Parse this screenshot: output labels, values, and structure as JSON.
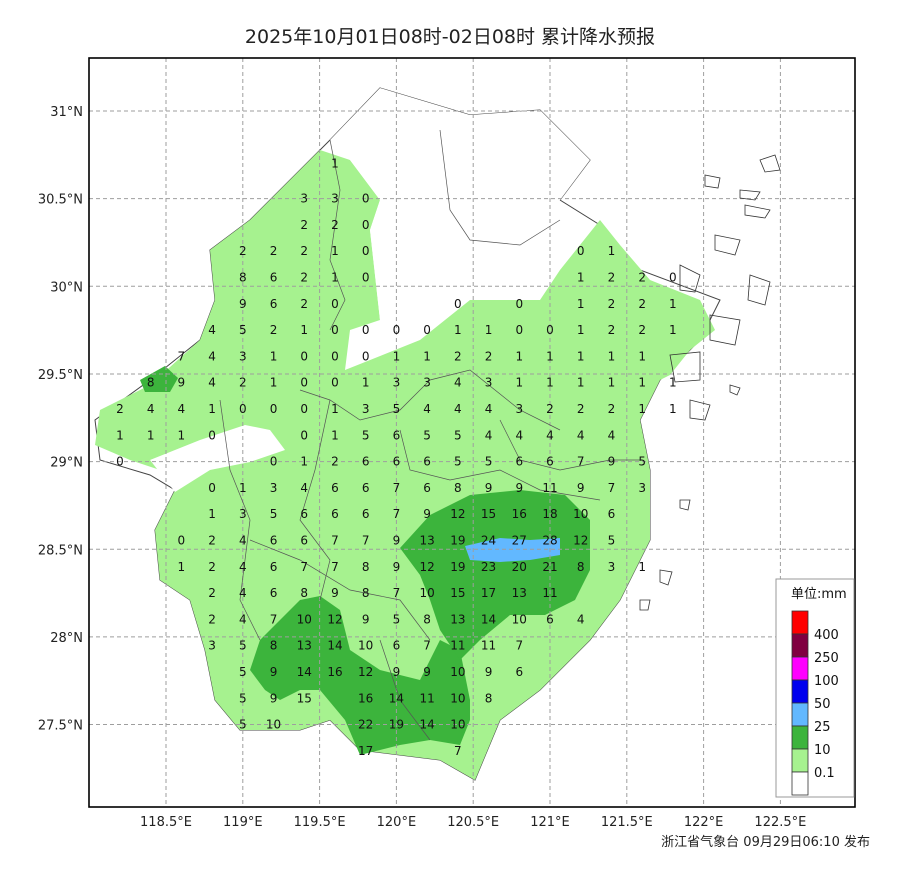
{
  "title": "2025年10月01日08时-02日08时 累计降水预报",
  "footer": "浙江省气象台 09月29日06:10 发布",
  "map": {
    "lon_ticks": [
      "118.5°E",
      "119°E",
      "119.5°E",
      "120°E",
      "120.5°E",
      "121°E",
      "121.5°E",
      "122°E",
      "122.5°E"
    ],
    "lat_ticks": [
      "31°N",
      "30.5°N",
      "30°N",
      "29.5°N",
      "29°N",
      "28.5°N",
      "28°N",
      "27.5°N"
    ],
    "grid": true
  },
  "legend": {
    "title": "单位:mm",
    "items": [
      {
        "label": "400",
        "color": "#ff0000"
      },
      {
        "label": "250",
        "color": "#800040"
      },
      {
        "label": "100",
        "color": "#ff00ff"
      },
      {
        "label": "50",
        "color": "#0000ee"
      },
      {
        "label": "25",
        "color": "#62b8ff"
      },
      {
        "label": "10",
        "color": "#3cb43c"
      },
      {
        "label": "0.1",
        "color": "#a6f28f"
      },
      {
        "label": "",
        "color": "#ffffff"
      }
    ]
  },
  "grid_values": [
    {
      "lon": 119.6,
      "lat": 30.7,
      "v": "1"
    },
    {
      "lon": 119.4,
      "lat": 30.5,
      "v": "3"
    },
    {
      "lon": 119.6,
      "lat": 30.5,
      "v": "3"
    },
    {
      "lon": 119.8,
      "lat": 30.5,
      "v": "0"
    },
    {
      "lon": 119.4,
      "lat": 30.35,
      "v": "2"
    },
    {
      "lon": 119.6,
      "lat": 30.35,
      "v": "2"
    },
    {
      "lon": 119.8,
      "lat": 30.35,
      "v": "0"
    },
    {
      "lon": 119.0,
      "lat": 30.2,
      "v": "2"
    },
    {
      "lon": 119.2,
      "lat": 30.2,
      "v": "2"
    },
    {
      "lon": 119.4,
      "lat": 30.2,
      "v": "2"
    },
    {
      "lon": 119.6,
      "lat": 30.2,
      "v": "1"
    },
    {
      "lon": 119.8,
      "lat": 30.2,
      "v": "0"
    },
    {
      "lon": 119.0,
      "lat": 30.05,
      "v": "8"
    },
    {
      "lon": 119.2,
      "lat": 30.05,
      "v": "6"
    },
    {
      "lon": 119.4,
      "lat": 30.05,
      "v": "2"
    },
    {
      "lon": 119.6,
      "lat": 30.05,
      "v": "1"
    },
    {
      "lon": 119.8,
      "lat": 30.05,
      "v": "0"
    },
    {
      "lon": 119.0,
      "lat": 29.9,
      "v": "9"
    },
    {
      "lon": 119.2,
      "lat": 29.9,
      "v": "6"
    },
    {
      "lon": 119.4,
      "lat": 29.9,
      "v": "2"
    },
    {
      "lon": 119.6,
      "lat": 29.9,
      "v": "0"
    },
    {
      "lon": 120.4,
      "lat": 29.9,
      "v": "0"
    },
    {
      "lon": 120.8,
      "lat": 29.9,
      "v": "0"
    },
    {
      "lon": 118.8,
      "lat": 29.75,
      "v": "4"
    },
    {
      "lon": 119.0,
      "lat": 29.75,
      "v": "5"
    },
    {
      "lon": 119.2,
      "lat": 29.75,
      "v": "2"
    },
    {
      "lon": 119.4,
      "lat": 29.75,
      "v": "1"
    },
    {
      "lon": 119.6,
      "lat": 29.75,
      "v": "0"
    },
    {
      "lon": 119.8,
      "lat": 29.75,
      "v": "0"
    },
    {
      "lon": 120.0,
      "lat": 29.75,
      "v": "0"
    },
    {
      "lon": 120.2,
      "lat": 29.75,
      "v": "0"
    },
    {
      "lon": 120.4,
      "lat": 29.75,
      "v": "1"
    },
    {
      "lon": 120.6,
      "lat": 29.75,
      "v": "1"
    },
    {
      "lon": 120.8,
      "lat": 29.75,
      "v": "0"
    },
    {
      "lon": 121.0,
      "lat": 29.75,
      "v": "0"
    },
    {
      "lon": 118.6,
      "lat": 29.6,
      "v": "7"
    },
    {
      "lon": 118.8,
      "lat": 29.6,
      "v": "4"
    },
    {
      "lon": 119.0,
      "lat": 29.6,
      "v": "3"
    },
    {
      "lon": 119.2,
      "lat": 29.6,
      "v": "1"
    },
    {
      "lon": 119.4,
      "lat": 29.6,
      "v": "0"
    },
    {
      "lon": 119.6,
      "lat": 29.6,
      "v": "0"
    },
    {
      "lon": 119.8,
      "lat": 29.6,
      "v": "0"
    },
    {
      "lon": 120.0,
      "lat": 29.6,
      "v": "1"
    },
    {
      "lon": 120.2,
      "lat": 29.6,
      "v": "1"
    },
    {
      "lon": 120.4,
      "lat": 29.6,
      "v": "2"
    },
    {
      "lon": 120.6,
      "lat": 29.6,
      "v": "2"
    },
    {
      "lon": 120.8,
      "lat": 29.6,
      "v": "1"
    },
    {
      "lon": 121.0,
      "lat": 29.6,
      "v": "1"
    },
    {
      "lon": 118.4,
      "lat": 29.45,
      "v": "8"
    },
    {
      "lon": 118.6,
      "lat": 29.45,
      "v": "9"
    },
    {
      "lon": 118.8,
      "lat": 29.45,
      "v": "4"
    },
    {
      "lon": 119.0,
      "lat": 29.45,
      "v": "2"
    },
    {
      "lon": 119.2,
      "lat": 29.45,
      "v": "1"
    },
    {
      "lon": 119.4,
      "lat": 29.45,
      "v": "0"
    },
    {
      "lon": 119.6,
      "lat": 29.45,
      "v": "0"
    },
    {
      "lon": 119.8,
      "lat": 29.45,
      "v": "1"
    },
    {
      "lon": 120.0,
      "lat": 29.45,
      "v": "3"
    },
    {
      "lon": 120.2,
      "lat": 29.45,
      "v": "3"
    },
    {
      "lon": 120.4,
      "lat": 29.45,
      "v": "4"
    },
    {
      "lon": 120.6,
      "lat": 29.45,
      "v": "3"
    },
    {
      "lon": 120.8,
      "lat": 29.45,
      "v": "1"
    },
    {
      "lon": 121.0,
      "lat": 29.45,
      "v": "1"
    },
    {
      "lon": 118.2,
      "lat": 29.3,
      "v": "2"
    },
    {
      "lon": 118.4,
      "lat": 29.3,
      "v": "4"
    },
    {
      "lon": 118.6,
      "lat": 29.3,
      "v": "4"
    },
    {
      "lon": 118.8,
      "lat": 29.3,
      "v": "1"
    },
    {
      "lon": 119.0,
      "lat": 29.3,
      "v": "0"
    },
    {
      "lon": 119.2,
      "lat": 29.3,
      "v": "0"
    },
    {
      "lon": 119.4,
      "lat": 29.3,
      "v": "0"
    },
    {
      "lon": 119.6,
      "lat": 29.3,
      "v": "1"
    },
    {
      "lon": 119.8,
      "lat": 29.3,
      "v": "3"
    },
    {
      "lon": 120.0,
      "lat": 29.3,
      "v": "5"
    },
    {
      "lon": 120.2,
      "lat": 29.3,
      "v": "4"
    },
    {
      "lon": 120.4,
      "lat": 29.3,
      "v": "4"
    },
    {
      "lon": 120.6,
      "lat": 29.3,
      "v": "4"
    },
    {
      "lon": 120.8,
      "lat": 29.3,
      "v": "3"
    },
    {
      "lon": 121.0,
      "lat": 29.3,
      "v": "2"
    },
    {
      "lon": 118.2,
      "lat": 29.15,
      "v": "1"
    },
    {
      "lon": 118.4,
      "lat": 29.15,
      "v": "1"
    },
    {
      "lon": 118.6,
      "lat": 29.15,
      "v": "1"
    },
    {
      "lon": 118.8,
      "lat": 29.15,
      "v": "0"
    },
    {
      "lon": 119.4,
      "lat": 29.15,
      "v": "0"
    },
    {
      "lon": 119.6,
      "lat": 29.15,
      "v": "1"
    },
    {
      "lon": 119.8,
      "lat": 29.15,
      "v": "5"
    },
    {
      "lon": 120.0,
      "lat": 29.15,
      "v": "6"
    },
    {
      "lon": 120.2,
      "lat": 29.15,
      "v": "5"
    },
    {
      "lon": 120.4,
      "lat": 29.15,
      "v": "5"
    },
    {
      "lon": 120.6,
      "lat": 29.15,
      "v": "4"
    },
    {
      "lon": 120.8,
      "lat": 29.15,
      "v": "4"
    },
    {
      "lon": 121.0,
      "lat": 29.15,
      "v": "4"
    },
    {
      "lon": 118.2,
      "lat": 29.0,
      "v": "0"
    },
    {
      "lon": 119.2,
      "lat": 29.0,
      "v": "0"
    },
    {
      "lon": 119.4,
      "lat": 29.0,
      "v": "1"
    },
    {
      "lon": 119.6,
      "lat": 29.0,
      "v": "2"
    },
    {
      "lon": 119.8,
      "lat": 29.0,
      "v": "6"
    },
    {
      "lon": 120.0,
      "lat": 29.0,
      "v": "6"
    },
    {
      "lon": 120.2,
      "lat": 29.0,
      "v": "6"
    },
    {
      "lon": 120.4,
      "lat": 29.0,
      "v": "5"
    },
    {
      "lon": 120.6,
      "lat": 29.0,
      "v": "5"
    },
    {
      "lon": 120.8,
      "lat": 29.0,
      "v": "6"
    },
    {
      "lon": 121.0,
      "lat": 29.0,
      "v": "6"
    },
    {
      "lon": 118.8,
      "lat": 28.85,
      "v": "0"
    },
    {
      "lon": 119.0,
      "lat": 28.85,
      "v": "1"
    },
    {
      "lon": 119.2,
      "lat": 28.85,
      "v": "3"
    },
    {
      "lon": 119.4,
      "lat": 28.85,
      "v": "4"
    },
    {
      "lon": 119.6,
      "lat": 28.85,
      "v": "6"
    },
    {
      "lon": 119.8,
      "lat": 28.85,
      "v": "6"
    },
    {
      "lon": 120.0,
      "lat": 28.85,
      "v": "7"
    },
    {
      "lon": 120.2,
      "lat": 28.85,
      "v": "6"
    },
    {
      "lon": 120.4,
      "lat": 28.85,
      "v": "8"
    },
    {
      "lon": 120.6,
      "lat": 28.85,
      "v": "9"
    },
    {
      "lon": 120.8,
      "lat": 28.85,
      "v": "9"
    },
    {
      "lon": 121.0,
      "lat": 28.85,
      "v": "11"
    },
    {
      "lon": 118.8,
      "lat": 28.7,
      "v": "1"
    },
    {
      "lon": 119.0,
      "lat": 28.7,
      "v": "3"
    },
    {
      "lon": 119.2,
      "lat": 28.7,
      "v": "5"
    },
    {
      "lon": 119.4,
      "lat": 28.7,
      "v": "6"
    },
    {
      "lon": 119.6,
      "lat": 28.7,
      "v": "6"
    },
    {
      "lon": 119.8,
      "lat": 28.7,
      "v": "6"
    },
    {
      "lon": 120.0,
      "lat": 28.7,
      "v": "7"
    },
    {
      "lon": 120.2,
      "lat": 28.7,
      "v": "9"
    },
    {
      "lon": 120.4,
      "lat": 28.7,
      "v": "12"
    },
    {
      "lon": 120.6,
      "lat": 28.7,
      "v": "15"
    },
    {
      "lon": 120.8,
      "lat": 28.7,
      "v": "16"
    },
    {
      "lon": 121.0,
      "lat": 28.7,
      "v": "18"
    },
    {
      "lon": 118.6,
      "lat": 28.55,
      "v": "0"
    },
    {
      "lon": 118.8,
      "lat": 28.55,
      "v": "2"
    },
    {
      "lon": 119.0,
      "lat": 28.55,
      "v": "4"
    },
    {
      "lon": 119.2,
      "lat": 28.55,
      "v": "6"
    },
    {
      "lon": 119.4,
      "lat": 28.55,
      "v": "6"
    },
    {
      "lon": 119.6,
      "lat": 28.55,
      "v": "7"
    },
    {
      "lon": 119.8,
      "lat": 28.55,
      "v": "7"
    },
    {
      "lon": 120.0,
      "lat": 28.55,
      "v": "9"
    },
    {
      "lon": 120.2,
      "lat": 28.55,
      "v": "13"
    },
    {
      "lon": 120.4,
      "lat": 28.55,
      "v": "19"
    },
    {
      "lon": 120.6,
      "lat": 28.55,
      "v": "24"
    },
    {
      "lon": 120.8,
      "lat": 28.55,
      "v": "27"
    },
    {
      "lon": 121.0,
      "lat": 28.55,
      "v": "28"
    },
    {
      "lon": 118.6,
      "lat": 28.4,
      "v": "1"
    },
    {
      "lon": 118.8,
      "lat": 28.4,
      "v": "2"
    },
    {
      "lon": 119.0,
      "lat": 28.4,
      "v": "4"
    },
    {
      "lon": 119.2,
      "lat": 28.4,
      "v": "6"
    },
    {
      "lon": 119.4,
      "lat": 28.4,
      "v": "7"
    },
    {
      "lon": 119.6,
      "lat": 28.4,
      "v": "7"
    },
    {
      "lon": 119.8,
      "lat": 28.4,
      "v": "8"
    },
    {
      "lon": 120.0,
      "lat": 28.4,
      "v": "9"
    },
    {
      "lon": 120.2,
      "lat": 28.4,
      "v": "12"
    },
    {
      "lon": 120.4,
      "lat": 28.4,
      "v": "19"
    },
    {
      "lon": 120.6,
      "lat": 28.4,
      "v": "23"
    },
    {
      "lon": 120.8,
      "lat": 28.4,
      "v": "20"
    },
    {
      "lon": 121.0,
      "lat": 28.4,
      "v": "21"
    },
    {
      "lon": 118.8,
      "lat": 28.25,
      "v": "2"
    },
    {
      "lon": 119.0,
      "lat": 28.25,
      "v": "4"
    },
    {
      "lon": 119.2,
      "lat": 28.25,
      "v": "6"
    },
    {
      "lon": 119.4,
      "lat": 28.25,
      "v": "8"
    },
    {
      "lon": 119.6,
      "lat": 28.25,
      "v": "9"
    },
    {
      "lon": 119.8,
      "lat": 28.25,
      "v": "8"
    },
    {
      "lon": 120.0,
      "lat": 28.25,
      "v": "7"
    },
    {
      "lon": 120.2,
      "lat": 28.25,
      "v": "10"
    },
    {
      "lon": 120.4,
      "lat": 28.25,
      "v": "15"
    },
    {
      "lon": 120.6,
      "lat": 28.25,
      "v": "17"
    },
    {
      "lon": 120.8,
      "lat": 28.25,
      "v": "13"
    },
    {
      "lon": 121.0,
      "lat": 28.25,
      "v": "11"
    },
    {
      "lon": 118.8,
      "lat": 28.1,
      "v": "2"
    },
    {
      "lon": 119.0,
      "lat": 28.1,
      "v": "4"
    },
    {
      "lon": 119.2,
      "lat": 28.1,
      "v": "7"
    },
    {
      "lon": 119.4,
      "lat": 28.1,
      "v": "10"
    },
    {
      "lon": 119.6,
      "lat": 28.1,
      "v": "12"
    },
    {
      "lon": 119.8,
      "lat": 28.1,
      "v": "9"
    },
    {
      "lon": 120.0,
      "lat": 28.1,
      "v": "5"
    },
    {
      "lon": 120.2,
      "lat": 28.1,
      "v": "8"
    },
    {
      "lon": 120.4,
      "lat": 28.1,
      "v": "13"
    },
    {
      "lon": 120.6,
      "lat": 28.1,
      "v": "14"
    },
    {
      "lon": 120.8,
      "lat": 28.1,
      "v": "10"
    },
    {
      "lon": 121.0,
      "lat": 28.1,
      "v": "6"
    },
    {
      "lon": 118.8,
      "lat": 27.95,
      "v": "3"
    },
    {
      "lon": 119.0,
      "lat": 27.95,
      "v": "5"
    },
    {
      "lon": 119.2,
      "lat": 27.95,
      "v": "8"
    },
    {
      "lon": 119.4,
      "lat": 27.95,
      "v": "13"
    },
    {
      "lon": 119.6,
      "lat": 27.95,
      "v": "14"
    },
    {
      "lon": 119.8,
      "lat": 27.95,
      "v": "10"
    },
    {
      "lon": 120.0,
      "lat": 27.95,
      "v": "6"
    },
    {
      "lon": 120.2,
      "lat": 27.95,
      "v": "7"
    },
    {
      "lon": 120.4,
      "lat": 27.95,
      "v": "11"
    },
    {
      "lon": 120.6,
      "lat": 27.95,
      "v": "11"
    },
    {
      "lon": 120.8,
      "lat": 27.95,
      "v": "7"
    },
    {
      "lon": 119.0,
      "lat": 27.8,
      "v": "5"
    },
    {
      "lon": 119.2,
      "lat": 27.8,
      "v": "9"
    },
    {
      "lon": 119.4,
      "lat": 27.8,
      "v": "14"
    },
    {
      "lon": 119.6,
      "lat": 27.8,
      "v": "16"
    },
    {
      "lon": 119.8,
      "lat": 27.8,
      "v": "12"
    },
    {
      "lon": 120.0,
      "lat": 27.8,
      "v": "9"
    },
    {
      "lon": 120.2,
      "lat": 27.8,
      "v": "9"
    },
    {
      "lon": 120.4,
      "lat": 27.8,
      "v": "10"
    },
    {
      "lon": 120.6,
      "lat": 27.8,
      "v": "9"
    },
    {
      "lon": 120.8,
      "lat": 27.8,
      "v": "6"
    },
    {
      "lon": 119.0,
      "lat": 27.65,
      "v": "5"
    },
    {
      "lon": 119.2,
      "lat": 27.65,
      "v": "9"
    },
    {
      "lon": 119.4,
      "lat": 27.65,
      "v": "15"
    },
    {
      "lon": 119.8,
      "lat": 27.65,
      "v": "16"
    },
    {
      "lon": 120.0,
      "lat": 27.65,
      "v": "14"
    },
    {
      "lon": 120.2,
      "lat": 27.65,
      "v": "11"
    },
    {
      "lon": 120.4,
      "lat": 27.65,
      "v": "10"
    },
    {
      "lon": 120.6,
      "lat": 27.65,
      "v": "8"
    },
    {
      "lon": 119.0,
      "lat": 27.5,
      "v": "5"
    },
    {
      "lon": 119.2,
      "lat": 27.5,
      "v": "10"
    },
    {
      "lon": 119.8,
      "lat": 27.5,
      "v": "22"
    },
    {
      "lon": 120.0,
      "lat": 27.5,
      "v": "19"
    },
    {
      "lon": 120.2,
      "lat": 27.5,
      "v": "14"
    },
    {
      "lon": 120.4,
      "lat": 27.5,
      "v": "10"
    },
    {
      "lon": 119.8,
      "lat": 27.35,
      "v": "17"
    },
    {
      "lon": 120.4,
      "lat": 27.35,
      "v": "7"
    },
    {
      "lon": 121.2,
      "lat": 29.15,
      "v": "4"
    },
    {
      "lon": 121.4,
      "lat": 29.15,
      "v": "4"
    },
    {
      "lon": 121.2,
      "lat": 29.0,
      "v": "7"
    },
    {
      "lon": 121.4,
      "lat": 29.0,
      "v": "9"
    },
    {
      "lon": 121.6,
      "lat": 29.0,
      "v": "5"
    },
    {
      "lon": 121.2,
      "lat": 28.85,
      "v": "9"
    },
    {
      "lon": 121.4,
      "lat": 28.85,
      "v": "7"
    },
    {
      "lon": 121.6,
      "lat": 28.85,
      "v": "3"
    },
    {
      "lon": 121.2,
      "lat": 28.7,
      "v": "10"
    },
    {
      "lon": 121.4,
      "lat": 28.7,
      "v": "6"
    },
    {
      "lon": 121.2,
      "lat": 28.55,
      "v": "12"
    },
    {
      "lon": 121.4,
      "lat": 28.55,
      "v": "5"
    },
    {
      "lon": 121.2,
      "lat": 28.4,
      "v": "8"
    },
    {
      "lon": 121.4,
      "lat": 28.4,
      "v": "3"
    },
    {
      "lon": 121.6,
      "lat": 28.4,
      "v": "1"
    },
    {
      "lon": 121.2,
      "lat": 28.1,
      "v": "4"
    },
    {
      "lon": 121.2,
      "lat": 30.2,
      "v": "0"
    },
    {
      "lon": 121.4,
      "lat": 30.2,
      "v": "1"
    },
    {
      "lon": 121.2,
      "lat": 30.05,
      "v": "1"
    },
    {
      "lon": 121.4,
      "lat": 30.05,
      "v": "2"
    },
    {
      "lon": 121.6,
      "lat": 30.05,
      "v": "2"
    },
    {
      "lon": 121.8,
      "lat": 30.05,
      "v": "0"
    },
    {
      "lon": 121.2,
      "lat": 29.9,
      "v": "1"
    },
    {
      "lon": 121.4,
      "lat": 29.9,
      "v": "2"
    },
    {
      "lon": 121.6,
      "lat": 29.9,
      "v": "2"
    },
    {
      "lon": 121.8,
      "lat": 29.9,
      "v": "1"
    },
    {
      "lon": 121.2,
      "lat": 29.75,
      "v": "1"
    },
    {
      "lon": 121.4,
      "lat": 29.75,
      "v": "2"
    },
    {
      "lon": 121.6,
      "lat": 29.75,
      "v": "2"
    },
    {
      "lon": 121.8,
      "lat": 29.75,
      "v": "1"
    },
    {
      "lon": 121.2,
      "lat": 29.6,
      "v": "1"
    },
    {
      "lon": 121.4,
      "lat": 29.6,
      "v": "1"
    },
    {
      "lon": 121.6,
      "lat": 29.6,
      "v": "1"
    },
    {
      "lon": 121.2,
      "lat": 29.45,
      "v": "1"
    },
    {
      "lon": 121.4,
      "lat": 29.45,
      "v": "1"
    },
    {
      "lon": 121.6,
      "lat": 29.45,
      "v": "1"
    },
    {
      "lon": 121.8,
      "lat": 29.45,
      "v": "1"
    },
    {
      "lon": 121.2,
      "lat": 29.3,
      "v": "2"
    },
    {
      "lon": 121.4,
      "lat": 29.3,
      "v": "2"
    },
    {
      "lon": 121.6,
      "lat": 29.3,
      "v": "1"
    },
    {
      "lon": 121.8,
      "lat": 29.3,
      "v": "1"
    }
  ]
}
